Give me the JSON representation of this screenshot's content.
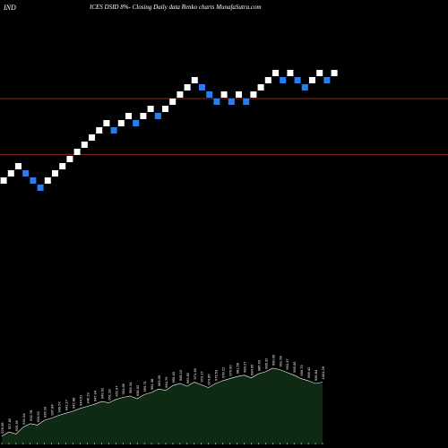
{
  "header": {
    "left_label": "IND",
    "title": "ICES DSID 8%-  Closing Daily data  Renko  charts MunafaSutra.com"
  },
  "colors": {
    "background": "#000000",
    "up_brick": "#ffffff",
    "down_brick": "#2b7de9",
    "reference_line": "#8b2a1a",
    "volume_area": "#0e2a12",
    "volume_outline": "#ffffff",
    "volume_label": "#ffffff"
  },
  "chart_data": {
    "type": "renko",
    "bricks": [
      {
        "dir": "up",
        "level": 0
      },
      {
        "dir": "up",
        "level": 1
      },
      {
        "dir": "up",
        "level": 2
      },
      {
        "dir": "down",
        "level": 1
      },
      {
        "dir": "down",
        "level": 0
      },
      {
        "dir": "down",
        "level": -1
      },
      {
        "dir": "up",
        "level": 0
      },
      {
        "dir": "up",
        "level": 1
      },
      {
        "dir": "up",
        "level": 2
      },
      {
        "dir": "up",
        "level": 3
      },
      {
        "dir": "up",
        "level": 4
      },
      {
        "dir": "up",
        "level": 5
      },
      {
        "dir": "up",
        "level": 6
      },
      {
        "dir": "up",
        "level": 7
      },
      {
        "dir": "up",
        "level": 8
      },
      {
        "dir": "down",
        "level": 7
      },
      {
        "dir": "up",
        "level": 8
      },
      {
        "dir": "up",
        "level": 9
      },
      {
        "dir": "down",
        "level": 8
      },
      {
        "dir": "up",
        "level": 9
      },
      {
        "dir": "up",
        "level": 10
      },
      {
        "dir": "down",
        "level": 9
      },
      {
        "dir": "up",
        "level": 10
      },
      {
        "dir": "up",
        "level": 11
      },
      {
        "dir": "up",
        "level": 12
      },
      {
        "dir": "up",
        "level": 13
      },
      {
        "dir": "up",
        "level": 14
      },
      {
        "dir": "down",
        "level": 13
      },
      {
        "dir": "down",
        "level": 12
      },
      {
        "dir": "down",
        "level": 11
      },
      {
        "dir": "up",
        "level": 12
      },
      {
        "dir": "down",
        "level": 11
      },
      {
        "dir": "up",
        "level": 12
      },
      {
        "dir": "down",
        "level": 11
      },
      {
        "dir": "up",
        "level": 12
      },
      {
        "dir": "up",
        "level": 13
      },
      {
        "dir": "up",
        "level": 14
      },
      {
        "dir": "up",
        "level": 15
      },
      {
        "dir": "down",
        "level": 14
      },
      {
        "dir": "up",
        "level": 15
      },
      {
        "dir": "down",
        "level": 14
      },
      {
        "dir": "down",
        "level": 13
      },
      {
        "dir": "up",
        "level": 14
      },
      {
        "dir": "up",
        "level": 15
      },
      {
        "dir": "down",
        "level": 14
      },
      {
        "dir": "up",
        "level": 15
      }
    ],
    "reference_levels": [
      11.5,
      3.7
    ],
    "volume": [
      12,
      18,
      15,
      25,
      30,
      28,
      35,
      38,
      42,
      45,
      48,
      52,
      55,
      58,
      62,
      60,
      65,
      68,
      70,
      66,
      72,
      75,
      80,
      78,
      85,
      88,
      84,
      90,
      86,
      82,
      88,
      92,
      95,
      98,
      100,
      96,
      102,
      105,
      110,
      108,
      104,
      100,
      95,
      92,
      88,
      90
    ],
    "volume_labels": [
      "926.06",
      "927.82",
      "929.35",
      "931.04",
      "932.78",
      "934.52",
      "936.20",
      "937.84",
      "939.52",
      "941.17",
      "942.88",
      "944.51",
      "946.23",
      "947.94",
      "949.61",
      "951.28",
      "952.97",
      "954.68",
      "956.34",
      "958.02",
      "959.71",
      "961.38",
      "963.05",
      "964.76",
      "966.43",
      "968.10",
      "969.82",
      "971.49",
      "973.17",
      "974.85",
      "976.53",
      "978.22",
      "979.90",
      "981.58",
      "983.27",
      "984.95",
      "986.63",
      "988.32",
      "990.00",
      "991.68",
      "993.37",
      "995.05",
      "996.73",
      "998.42",
      "999.84",
      "1001.26"
    ],
    "grid": false
  }
}
